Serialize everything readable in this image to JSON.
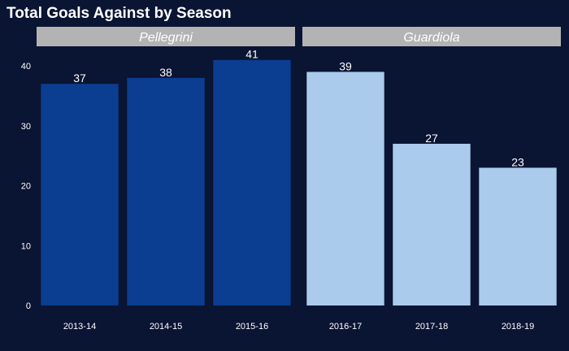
{
  "chart_data": {
    "type": "bar",
    "title": "Total Goals Against by Season",
    "xlabel": "",
    "ylabel": "",
    "ylim": [
      0,
      43
    ],
    "yticks": [
      0,
      10,
      20,
      30,
      40
    ],
    "grid": false,
    "legend": "none",
    "facets": [
      {
        "label": "Pellegrini",
        "color": "#0b3d91",
        "categories": [
          "2013-14",
          "2014-15",
          "2015-16"
        ],
        "values": [
          37,
          38,
          41
        ]
      },
      {
        "label": "Guardiola",
        "color": "#abcbed",
        "categories": [
          "2016-17",
          "2017-18",
          "2018-19"
        ],
        "values": [
          39,
          27,
          23
        ]
      }
    ]
  },
  "colors": {
    "background": "#0a1433",
    "strip": "#b3b3b3",
    "text": "#ffffff"
  }
}
